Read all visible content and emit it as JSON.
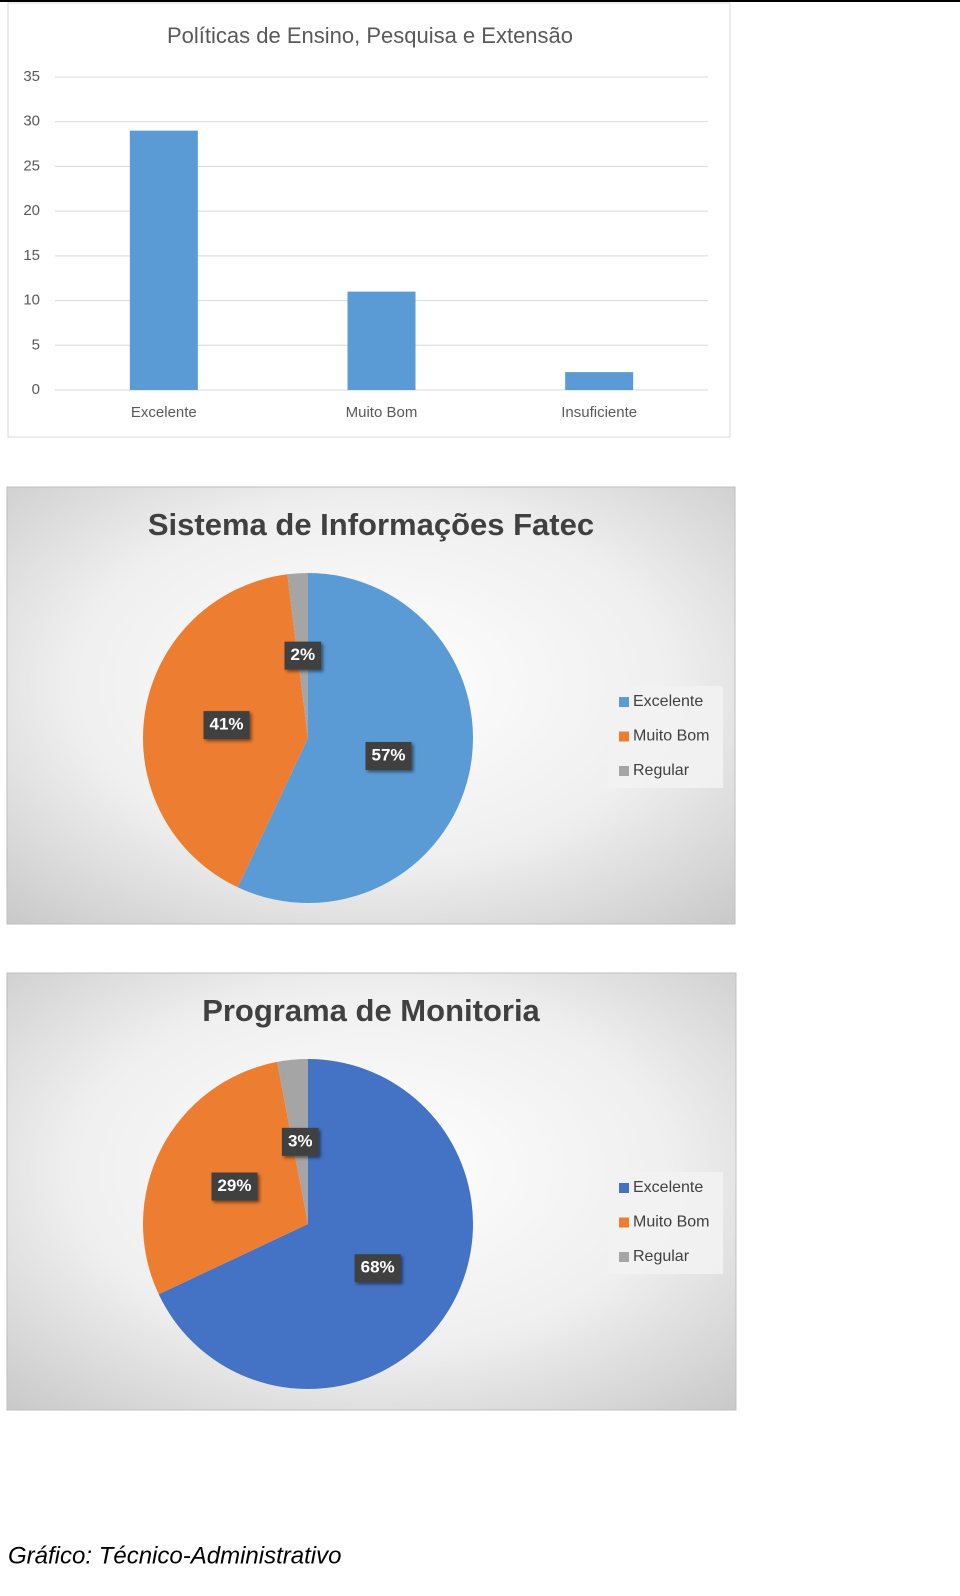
{
  "chart_data": [
    {
      "type": "bar",
      "title": "Políticas de Ensino, Pesquisa e Extensão",
      "categories": [
        "Excelente",
        "Muito Bom",
        "Insuficiente"
      ],
      "values": [
        29,
        11,
        2
      ],
      "color": "#5b9bd5",
      "ylim": [
        0,
        35
      ],
      "yticks": [
        0,
        5,
        10,
        15,
        20,
        25,
        30,
        35
      ],
      "grid": true
    },
    {
      "type": "pie",
      "title": "Sistema de Informações Fatec",
      "categories": [
        "Excelente",
        "Muito Bom",
        "Regular"
      ],
      "values": [
        57,
        41,
        2
      ],
      "value_labels": [
        "57%",
        "41%",
        "2%"
      ],
      "colors": [
        "#5b9bd5",
        "#ed7d31",
        "#a5a5a5"
      ],
      "legend": "right"
    },
    {
      "type": "pie",
      "title": "Programa de Monitoria",
      "categories": [
        "Excelente",
        "Muito Bom",
        "Regular"
      ],
      "values": [
        68,
        29,
        3
      ],
      "value_labels": [
        "68%",
        "29%",
        "3%"
      ],
      "colors": [
        "#4472c4",
        "#ed7d31",
        "#a5a5a5"
      ],
      "legend": "right"
    }
  ],
  "caption": "Gráfico: Técnico-Administrativo"
}
